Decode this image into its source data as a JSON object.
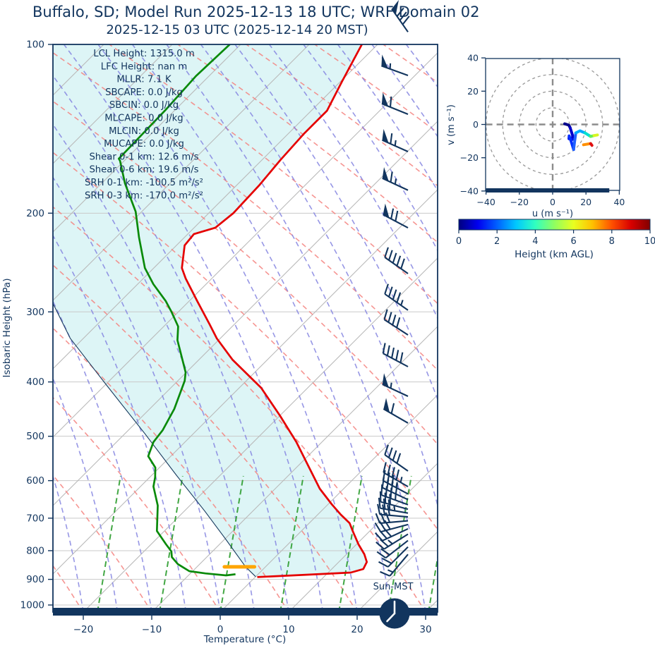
{
  "header": {
    "title": "Buffalo, SD; Model Run 2025-12-13 18 UTC; WRF Domain 02",
    "subtitle": "2025-12-15 03 UTC  (2025-12-14 20 MST)"
  },
  "stats": {
    "lines": [
      "LCL Height: 1315.0 m",
      "LFC Height: nan m",
      "MLLR: 7.1 K",
      "SBCAPE: 0.0 J/kg",
      "SBCIN: 0.0 J/kg",
      "MLCAPE: 0.0 J/kg",
      "MLCIN: 0.0 J/kg",
      "MUCAPE: 0.0 J/kg",
      "Shear 0-1 km: 12.6 m/s",
      "Shear 0-6 km: 19.6 m/s",
      "SRH 0-1 km: -100.5 m²/s²",
      "SRH 0-3 km: -170.0 m²/s²"
    ]
  },
  "skewt": {
    "xlabel": "Temperature (°C)",
    "ylabel": "Isobaric Height (hPa)",
    "x_ticks": [
      {
        "value": -20,
        "label": "−20"
      },
      {
        "value": -10,
        "label": "−10"
      },
      {
        "value": 0,
        "label": "0"
      },
      {
        "value": 10,
        "label": "10"
      },
      {
        "value": 20,
        "label": "20"
      },
      {
        "value": 30,
        "label": "30"
      }
    ],
    "y_ticks": [
      {
        "value": 100,
        "label": "100"
      },
      {
        "value": 200,
        "label": "200"
      },
      {
        "value": 300,
        "label": "300"
      },
      {
        "value": 400,
        "label": "400"
      },
      {
        "value": 500,
        "label": "500"
      },
      {
        "value": 600,
        "label": "600"
      },
      {
        "value": 700,
        "label": "700"
      },
      {
        "value": 800,
        "label": "800"
      },
      {
        "value": 900,
        "label": "900"
      },
      {
        "value": 1000,
        "label": "1000"
      }
    ],
    "surface_time_label": "Sun-MST"
  },
  "hodograph": {
    "xlabel": "u (m s⁻¹)",
    "ylabel": "v (m s⁻¹)",
    "x_ticks": [
      {
        "value": -40,
        "label": "−40"
      },
      {
        "value": -20,
        "label": "−20"
      },
      {
        "value": 0,
        "label": "0"
      },
      {
        "value": 20,
        "label": "20"
      },
      {
        "value": 40,
        "label": "40"
      }
    ],
    "y_ticks": [
      {
        "value": 40,
        "label": "40"
      },
      {
        "value": 20,
        "label": "20"
      },
      {
        "value": 0,
        "label": "0"
      },
      {
        "value": -20,
        "label": "−20"
      },
      {
        "value": -40,
        "label": "−40"
      }
    ]
  },
  "colorbar": {
    "label": "Height (km AGL)",
    "ticks": [
      "0",
      "2",
      "4",
      "6",
      "8",
      "10"
    ],
    "gradient": [
      "#00007f",
      "#0000f0",
      "#0060ff",
      "#00c8ff",
      "#30ffc0",
      "#90ff60",
      "#e8ff20",
      "#ffc000",
      "#ff5000",
      "#d80000",
      "#800000"
    ]
  },
  "chart_data": [
    {
      "type": "line",
      "name": "skew-t-log-p sounding",
      "xlabel": "Temperature (°C)",
      "ylabel": "Isobaric Height (hPa)",
      "xlim_c": [
        -25,
        32
      ],
      "pressure_lim_hPa": [
        100,
        1029
      ],
      "series": [
        {
          "name": "temperature",
          "color": "#e50000",
          "points_p_T": [
            [
              100,
              -62.3
            ],
            [
              116.3,
              -59.8
            ],
            [
              131.3,
              -57.7
            ],
            [
              144.5,
              -57.7
            ],
            [
              160.8,
              -57.3
            ],
            [
              178.5,
              -56.7
            ],
            [
              200,
              -56.4
            ],
            [
              212.3,
              -56.9
            ],
            [
              217.9,
              -59.1
            ],
            [
              228.3,
              -58.8
            ],
            [
              250.5,
              -55.9
            ],
            [
              261.6,
              -53.8
            ],
            [
              287.1,
              -48.8
            ],
            [
              315.8,
              -43.6
            ],
            [
              334.6,
              -40.5
            ],
            [
              365.1,
              -35.1
            ],
            [
              409.8,
              -26.8
            ],
            [
              460.1,
              -19.9
            ],
            [
              512.3,
              -13.7
            ],
            [
              563.7,
              -8.6
            ],
            [
              620.1,
              -3.5
            ],
            [
              660.8,
              0.5
            ],
            [
              690.2,
              3.4
            ],
            [
              714.5,
              5.9
            ],
            [
              737.8,
              7.5
            ],
            [
              779.6,
              10.3
            ],
            [
              811.8,
              12.6
            ],
            [
              838.1,
              14.1
            ],
            [
              862.6,
              14.6
            ],
            [
              875.3,
              13.3
            ],
            [
              879.4,
              10.1
            ],
            [
              885.5,
              5.3
            ],
            [
              891.6,
              0.3
            ]
          ]
        },
        {
          "name": "dewpoint",
          "color": "#0a8a0a",
          "points_p_T": [
            [
              100,
              -81.6
            ],
            [
              113.9,
              -81.9
            ],
            [
              130.5,
              -81.4
            ],
            [
              159.9,
              -81.1
            ],
            [
              161.3,
              -80.6
            ],
            [
              176.9,
              -76.6
            ],
            [
              198.7,
              -70.9
            ],
            [
              221.1,
              -66.6
            ],
            [
              250.5,
              -61.3
            ],
            [
              267.7,
              -57.7
            ],
            [
              287.1,
              -53.4
            ],
            [
              300,
              -51.0
            ],
            [
              318.5,
              -47.9
            ],
            [
              336.9,
              -46.0
            ],
            [
              384.5,
              -40.1
            ],
            [
              398.1,
              -39.0
            ],
            [
              447,
              -36.4
            ],
            [
              487.5,
              -35.0
            ],
            [
              512.3,
              -34.6
            ],
            [
              542.8,
              -33.3
            ],
            [
              568.6,
              -30.6
            ],
            [
              591.9,
              -29.2
            ],
            [
              614.7,
              -28.1
            ],
            [
              664.6,
              -24.7
            ],
            [
              737.8,
              -21.1
            ],
            [
              779.6,
              -17.8
            ],
            [
              802.5,
              -16.0
            ],
            [
              821.4,
              -15.1
            ],
            [
              845.3,
              -13.2
            ],
            [
              870.2,
              -10.5
            ],
            [
              878.3,
              -7.8
            ],
            [
              885.5,
              -4.5
            ],
            [
              881.4,
              -3.3
            ]
          ]
        },
        {
          "name": "parcel-profile",
          "color": "#173a5e",
          "points_p_T": [
            [
              890,
              0.0
            ],
            [
              854.9,
              -2.9
            ],
            [
              763.8,
              -9.8
            ],
            [
              680.2,
              -17.0
            ],
            [
              585,
              -26.6
            ],
            [
              494.6,
              -37.1
            ],
            [
              403.9,
              -50.0
            ],
            [
              334.6,
              -61.9
            ],
            [
              289.5,
              -69.6
            ]
          ]
        }
      ],
      "lcl_marker": {
        "pressure_hPa": 855,
        "temp_c": -3.8,
        "half_width_c": 2.2,
        "color": "#ffa500"
      },
      "shade_color": "#ddf5f6",
      "wind_barbs": [
        {
          "p": 95,
          "dir": 55,
          "flag": 1,
          "full": 3,
          "half": 0
        },
        {
          "p": 113.6,
          "dir": 20,
          "flag": 1,
          "full": 0,
          "half": 1
        },
        {
          "p": 133.2,
          "dir": 22,
          "flag": 1,
          "full": 1,
          "half": 0
        },
        {
          "p": 155.3,
          "dir": 24,
          "flag": 1,
          "full": 1,
          "half": 1
        },
        {
          "p": 182,
          "dir": 25,
          "flag": 1,
          "full": 1,
          "half": 1
        },
        {
          "p": 212.4,
          "dir": 28,
          "flag": 1,
          "full": 2,
          "half": 0
        },
        {
          "p": 256.3,
          "dir": 35,
          "flag": 0,
          "full": 5,
          "half": 0
        },
        {
          "p": 297.9,
          "dir": 35,
          "flag": 0,
          "full": 4,
          "half": 1
        },
        {
          "p": 329.8,
          "dir": 33,
          "flag": 0,
          "full": 4,
          "half": 0
        },
        {
          "p": 375.7,
          "dir": 28,
          "flag": 0,
          "full": 5,
          "half": 0
        },
        {
          "p": 424.3,
          "dir": 25,
          "flag": 1,
          "full": 0,
          "half": 1
        },
        {
          "p": 473.6,
          "dir": 30,
          "flag": 1,
          "full": 1,
          "half": 0
        },
        {
          "p": 576.7,
          "dir": 35,
          "flag": 0,
          "full": 4,
          "half": 0
        },
        {
          "p": 614.9,
          "dir": 30,
          "flag": 0,
          "full": 4,
          "half": 1
        },
        {
          "p": 633.6,
          "dir": 28,
          "flag": 0,
          "full": 3,
          "half": 1
        },
        {
          "p": 648.6,
          "dir": 25,
          "flag": 0,
          "full": 4,
          "half": 0
        },
        {
          "p": 662.3,
          "dir": 20,
          "flag": 0,
          "full": 3,
          "half": 1
        },
        {
          "p": 674.7,
          "dir": 15,
          "flag": 0,
          "full": 3,
          "half": 0
        },
        {
          "p": 685.6,
          "dir": 10,
          "flag": 0,
          "full": 3,
          "half": 1
        },
        {
          "p": 696.4,
          "dir": 5,
          "flag": 0,
          "full": 3,
          "half": 0
        },
        {
          "p": 707.5,
          "dir": -5,
          "flag": 0,
          "full": 3,
          "half": 0
        },
        {
          "p": 718.6,
          "dir": -15,
          "flag": 0,
          "full": 3,
          "half": 0
        },
        {
          "p": 731.3,
          "dir": -25,
          "flag": 0,
          "full": 3,
          "half": 0
        },
        {
          "p": 747.5,
          "dir": -32,
          "flag": 0,
          "full": 2,
          "half": 1
        },
        {
          "p": 767.4,
          "dir": -38,
          "flag": 0,
          "full": 2,
          "half": 0
        },
        {
          "p": 787.8,
          "dir": -45,
          "flag": 0,
          "full": 2,
          "half": 0
        },
        {
          "p": 812.2,
          "dir": -50,
          "flag": 0,
          "full": 1,
          "half": 1
        }
      ]
    },
    {
      "type": "line",
      "name": "hodograph",
      "xlabel": "u (m s⁻¹)",
      "ylabel": "v (m s⁻¹)",
      "xlim": [
        -40,
        40
      ],
      "ylim": [
        -40,
        40
      ],
      "rings_m_s": [
        10,
        20,
        30,
        40
      ],
      "ground_bar_u": [
        -40,
        34
      ],
      "segments": [
        {
          "color": "#00008b",
          "points": [
            [
              7.2,
              0.4
            ],
            [
              9.7,
              -0.4
            ],
            [
              10.5,
              -2.0
            ]
          ]
        },
        {
          "color": "#0000cd",
          "points": [
            [
              10.5,
              -2.0
            ],
            [
              12.0,
              -6.7
            ],
            [
              11.8,
              -9.0
            ]
          ]
        },
        {
          "color": "#0010e8",
          "points": [
            [
              11.8,
              -9.0
            ],
            [
              9.8,
              -8.6
            ],
            [
              9.9,
              -6.9
            ]
          ]
        },
        {
          "color": "#0030ff",
          "points": [
            [
              9.9,
              -6.9
            ],
            [
              10.9,
              -9.5
            ],
            [
              12.6,
              -15.1
            ]
          ]
        },
        {
          "color": "#2060ff",
          "points": [
            [
              12.6,
              -15.1
            ],
            [
              13.2,
              -10.0
            ],
            [
              13.9,
              -5.1
            ]
          ]
        },
        {
          "color": "#00aaff",
          "points": [
            [
              13.9,
              -5.1
            ],
            [
              16.4,
              -3.8
            ],
            [
              19.4,
              -5.1
            ]
          ]
        },
        {
          "color": "#00e0d0",
          "points": [
            [
              19.4,
              -5.1
            ],
            [
              22.8,
              -7.2
            ]
          ]
        },
        {
          "color": "#66ee55",
          "points": [
            [
              22.8,
              -7.2
            ],
            [
              24.8,
              -6.7
            ]
          ]
        },
        {
          "color": "#d8f520",
          "points": [
            [
              24.8,
              -6.7
            ],
            [
              26.9,
              -6.3
            ]
          ]
        },
        {
          "color": "#ff9000",
          "points": [
            [
              18.5,
              -12.2
            ],
            [
              22.8,
              -11.5
            ]
          ]
        },
        {
          "color": "#e01010",
          "points": [
            [
              22.8,
              -11.5
            ],
            [
              23.6,
              -12.6
            ]
          ]
        }
      ]
    }
  ]
}
